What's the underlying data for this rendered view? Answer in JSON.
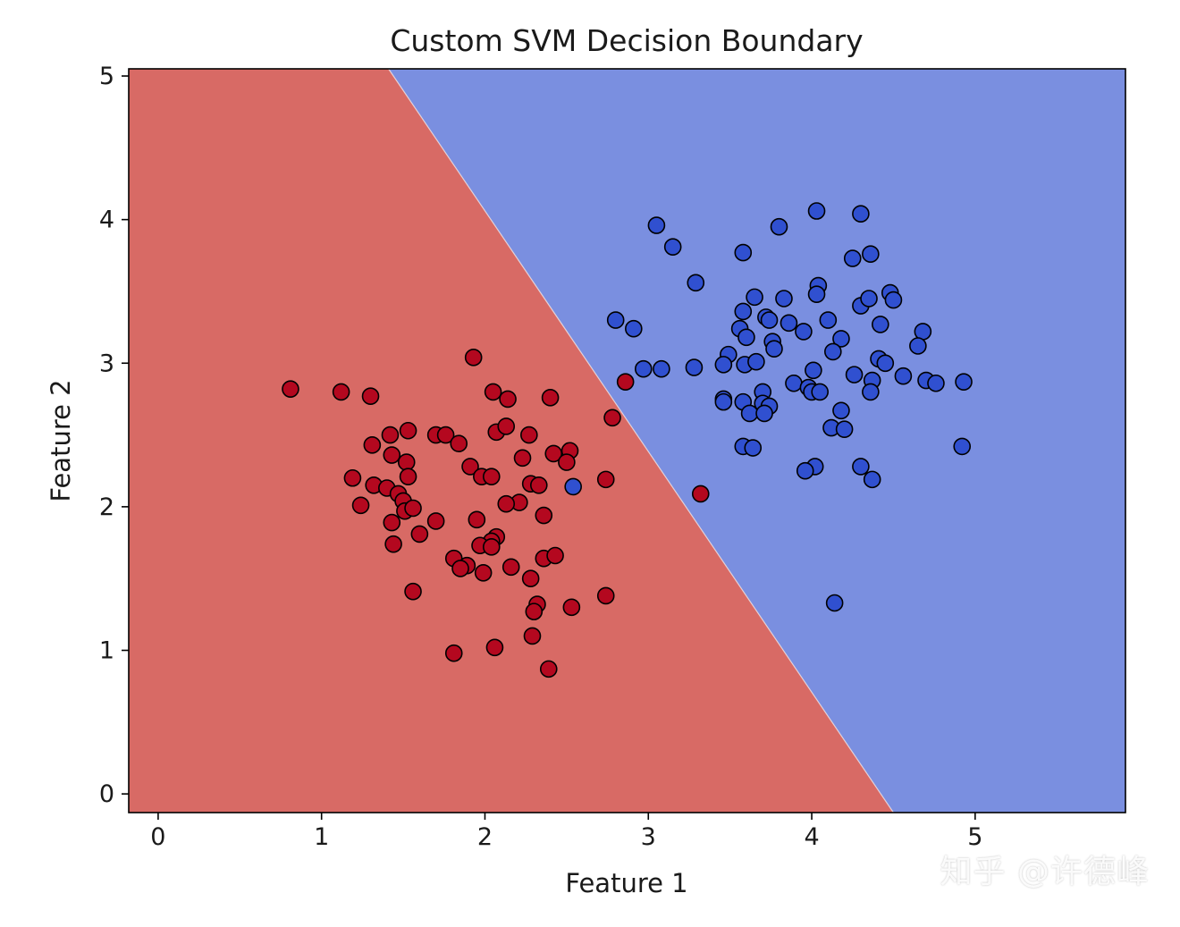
{
  "chart_data": {
    "type": "scatter",
    "title": "Custom SVM Decision Boundary",
    "xlabel": "Feature 1",
    "ylabel": "Feature 2",
    "xlim": [
      -0.18,
      5.92
    ],
    "ylim": [
      -0.13,
      5.05
    ],
    "xticks": [
      0,
      1,
      2,
      3,
      4,
      5
    ],
    "yticks": [
      0,
      1,
      2,
      3,
      4,
      5
    ],
    "grid": false,
    "decision_boundary": {
      "description": "linear boundary passing through (1.41, 5.05) and (4.50, -0.13)",
      "points": [
        [
          1.41,
          5.05
        ],
        [
          4.5,
          -0.13
        ]
      ],
      "left_region_color": "#d86a65",
      "right_region_color": "#7a8fe0"
    },
    "series": [
      {
        "class": "red",
        "color": "#b4081f",
        "points": [
          [
            0.81,
            2.82
          ],
          [
            1.12,
            2.8
          ],
          [
            1.3,
            2.77
          ],
          [
            1.31,
            2.43
          ],
          [
            1.42,
            2.5
          ],
          [
            1.53,
            2.53
          ],
          [
            1.43,
            2.36
          ],
          [
            1.52,
            2.31
          ],
          [
            1.53,
            2.21
          ],
          [
            1.19,
            2.2
          ],
          [
            1.32,
            2.15
          ],
          [
            1.4,
            2.13
          ],
          [
            1.47,
            2.09
          ],
          [
            1.5,
            2.04
          ],
          [
            1.24,
            2.01
          ],
          [
            1.51,
            1.97
          ],
          [
            1.56,
            1.99
          ],
          [
            1.43,
            1.89
          ],
          [
            1.44,
            1.74
          ],
          [
            1.6,
            1.81
          ],
          [
            1.56,
            1.41
          ],
          [
            1.7,
            2.5
          ],
          [
            1.76,
            2.5
          ],
          [
            1.84,
            2.44
          ],
          [
            1.91,
            2.28
          ],
          [
            1.98,
            2.21
          ],
          [
            2.04,
            2.21
          ],
          [
            1.7,
            1.9
          ],
          [
            1.93,
            3.04
          ],
          [
            2.05,
            2.8
          ],
          [
            2.14,
            2.75
          ],
          [
            2.07,
            2.52
          ],
          [
            2.13,
            2.56
          ],
          [
            2.27,
            2.5
          ],
          [
            2.23,
            2.34
          ],
          [
            2.42,
            2.37
          ],
          [
            2.52,
            2.39
          ],
          [
            2.5,
            2.31
          ],
          [
            2.4,
            2.76
          ],
          [
            2.28,
            2.16
          ],
          [
            2.33,
            2.15
          ],
          [
            2.21,
            2.03
          ],
          [
            2.13,
            2.02
          ],
          [
            2.36,
            1.94
          ],
          [
            1.95,
            1.91
          ],
          [
            2.07,
            1.79
          ],
          [
            2.04,
            1.76
          ],
          [
            1.97,
            1.73
          ],
          [
            2.04,
            1.72
          ],
          [
            1.81,
            1.64
          ],
          [
            1.89,
            1.59
          ],
          [
            1.85,
            1.57
          ],
          [
            1.99,
            1.54
          ],
          [
            2.16,
            1.58
          ],
          [
            2.28,
            1.5
          ],
          [
            2.36,
            1.64
          ],
          [
            2.43,
            1.66
          ],
          [
            2.32,
            1.32
          ],
          [
            2.3,
            1.27
          ],
          [
            2.53,
            1.3
          ],
          [
            2.29,
            1.1
          ],
          [
            2.06,
            1.02
          ],
          [
            1.81,
            0.98
          ],
          [
            2.39,
            0.87
          ],
          [
            2.74,
            2.19
          ],
          [
            2.78,
            2.62
          ],
          [
            2.74,
            1.38
          ],
          [
            2.86,
            2.87
          ],
          [
            3.32,
            2.09
          ]
        ]
      },
      {
        "class": "blue",
        "color": "#3050d0",
        "points": [
          [
            3.05,
            3.96
          ],
          [
            3.15,
            3.81
          ],
          [
            3.29,
            3.56
          ],
          [
            3.58,
            3.77
          ],
          [
            3.8,
            3.95
          ],
          [
            4.03,
            4.06
          ],
          [
            4.3,
            4.04
          ],
          [
            4.25,
            3.73
          ],
          [
            4.36,
            3.76
          ],
          [
            4.04,
            3.54
          ],
          [
            4.03,
            3.48
          ],
          [
            3.65,
            3.46
          ],
          [
            3.83,
            3.45
          ],
          [
            4.3,
            3.4
          ],
          [
            4.35,
            3.45
          ],
          [
            4.48,
            3.49
          ],
          [
            4.5,
            3.44
          ],
          [
            3.58,
            3.36
          ],
          [
            3.72,
            3.32
          ],
          [
            3.74,
            3.3
          ],
          [
            3.86,
            3.28
          ],
          [
            4.1,
            3.3
          ],
          [
            4.42,
            3.27
          ],
          [
            4.68,
            3.22
          ],
          [
            4.65,
            3.12
          ],
          [
            2.8,
            3.3
          ],
          [
            2.91,
            3.24
          ],
          [
            3.56,
            3.24
          ],
          [
            3.6,
            3.18
          ],
          [
            3.76,
            3.15
          ],
          [
            3.77,
            3.1
          ],
          [
            3.95,
            3.22
          ],
          [
            4.18,
            3.17
          ],
          [
            4.13,
            3.08
          ],
          [
            4.41,
            3.03
          ],
          [
            4.45,
            3.0
          ],
          [
            3.49,
            3.06
          ],
          [
            3.46,
            2.99
          ],
          [
            3.59,
            2.99
          ],
          [
            3.66,
            3.01
          ],
          [
            2.97,
            2.96
          ],
          [
            3.08,
            2.96
          ],
          [
            3.28,
            2.97
          ],
          [
            4.01,
            2.95
          ],
          [
            4.26,
            2.92
          ],
          [
            4.37,
            2.88
          ],
          [
            4.56,
            2.91
          ],
          [
            4.7,
            2.88
          ],
          [
            4.76,
            2.86
          ],
          [
            4.93,
            2.87
          ],
          [
            3.89,
            2.86
          ],
          [
            3.98,
            2.83
          ],
          [
            4.0,
            2.8
          ],
          [
            4.05,
            2.8
          ],
          [
            4.36,
            2.8
          ],
          [
            3.7,
            2.8
          ],
          [
            3.46,
            2.75
          ],
          [
            3.46,
            2.73
          ],
          [
            3.58,
            2.73
          ],
          [
            3.7,
            2.72
          ],
          [
            3.74,
            2.7
          ],
          [
            3.62,
            2.65
          ],
          [
            3.71,
            2.65
          ],
          [
            4.18,
            2.67
          ],
          [
            4.12,
            2.55
          ],
          [
            4.2,
            2.54
          ],
          [
            3.58,
            2.42
          ],
          [
            3.64,
            2.41
          ],
          [
            4.92,
            2.42
          ],
          [
            4.3,
            2.28
          ],
          [
            4.02,
            2.28
          ],
          [
            3.96,
            2.25
          ],
          [
            4.37,
            2.19
          ],
          [
            4.14,
            1.33
          ],
          [
            2.54,
            2.14
          ]
        ]
      }
    ]
  },
  "watermark": "知乎 @许德峰"
}
